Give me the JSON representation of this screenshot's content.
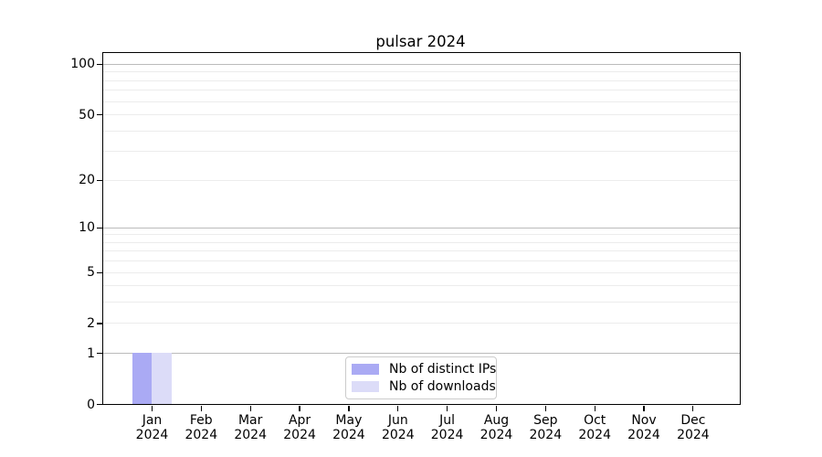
{
  "chart_data": {
    "type": "bar",
    "title": "pulsar 2024",
    "categories": [
      "Jan 2024",
      "Feb 2024",
      "Mar 2024",
      "Apr 2024",
      "May 2024",
      "Jun 2024",
      "Jul 2024",
      "Aug 2024",
      "Sep 2024",
      "Oct 2024",
      "Nov 2024",
      "Dec 2024"
    ],
    "x_ticks": [
      {
        "month": "Jan",
        "year": "2024"
      },
      {
        "month": "Feb",
        "year": "2024"
      },
      {
        "month": "Mar",
        "year": "2024"
      },
      {
        "month": "Apr",
        "year": "2024"
      },
      {
        "month": "May",
        "year": "2024"
      },
      {
        "month": "Jun",
        "year": "2024"
      },
      {
        "month": "Jul",
        "year": "2024"
      },
      {
        "month": "Aug",
        "year": "2024"
      },
      {
        "month": "Sep",
        "year": "2024"
      },
      {
        "month": "Oct",
        "year": "2024"
      },
      {
        "month": "Nov",
        "year": "2024"
      },
      {
        "month": "Dec",
        "year": "2024"
      }
    ],
    "series": [
      {
        "name": "Nb of distinct IPs",
        "color": "#aaaaf4",
        "values": [
          1,
          0,
          0,
          0,
          0,
          0,
          0,
          0,
          0,
          0,
          0,
          0
        ]
      },
      {
        "name": "Nb of downloads",
        "color": "#dcdcf8",
        "values": [
          1,
          0,
          0,
          0,
          0,
          0,
          0,
          0,
          0,
          0,
          0,
          0
        ]
      }
    ],
    "y_axis": {
      "scale": "log1p",
      "ticks": [
        0,
        1,
        2,
        5,
        10,
        20,
        50,
        100
      ],
      "limit": [
        0,
        116
      ],
      "grid_major": [
        1,
        10,
        100
      ],
      "grid_minor": [
        2,
        3,
        4,
        5,
        6,
        7,
        8,
        9,
        20,
        30,
        40,
        50,
        60,
        70,
        80,
        90
      ]
    },
    "legend": {
      "position": "lower center",
      "entries": [
        "Nb of distinct IPs",
        "Nb of downloads"
      ]
    },
    "colors": {
      "grid_major": "#bbbbbb",
      "grid_minor": "#ececec",
      "spine": "#000000",
      "legend_border": "#cccccc",
      "background": "#ffffff"
    }
  }
}
